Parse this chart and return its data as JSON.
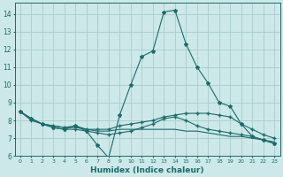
{
  "title": "",
  "xlabel": "Humidex (Indice chaleur)",
  "ylabel": "",
  "background_color": "#cce8e8",
  "grid_color": "#aacccc",
  "line_color": "#1a6b6b",
  "xlim": [
    -0.5,
    23.5
  ],
  "ylim": [
    6.0,
    14.6
  ],
  "yticks": [
    6,
    7,
    8,
    9,
    10,
    11,
    12,
    13,
    14
  ],
  "xticks": [
    0,
    1,
    2,
    3,
    4,
    5,
    6,
    7,
    8,
    9,
    10,
    11,
    12,
    13,
    14,
    15,
    16,
    17,
    18,
    19,
    20,
    21,
    22,
    23
  ],
  "series": [
    [
      8.5,
      8.1,
      7.8,
      7.6,
      7.5,
      7.7,
      7.4,
      6.6,
      5.9,
      8.3,
      10.0,
      11.6,
      11.9,
      14.1,
      14.2,
      12.3,
      11.0,
      10.1,
      9.0,
      8.8,
      7.8,
      7.1,
      6.9,
      6.7
    ],
    [
      8.5,
      8.1,
      7.8,
      7.7,
      7.6,
      7.7,
      7.5,
      7.5,
      7.5,
      7.7,
      7.8,
      7.9,
      8.0,
      8.2,
      8.3,
      8.4,
      8.4,
      8.4,
      8.3,
      8.2,
      7.8,
      7.5,
      7.2,
      7.0
    ],
    [
      8.5,
      8.1,
      7.8,
      7.7,
      7.6,
      7.6,
      7.5,
      7.4,
      7.4,
      7.5,
      7.5,
      7.5,
      7.5,
      7.5,
      7.5,
      7.4,
      7.4,
      7.3,
      7.2,
      7.1,
      7.1,
      7.0,
      6.9,
      6.8
    ],
    [
      8.5,
      8.0,
      7.8,
      7.6,
      7.5,
      7.5,
      7.4,
      7.3,
      7.2,
      7.3,
      7.4,
      7.6,
      7.8,
      8.1,
      8.2,
      8.0,
      7.7,
      7.5,
      7.4,
      7.3,
      7.2,
      7.1,
      6.9,
      6.7
    ]
  ],
  "marker_series": 0,
  "marker": "*",
  "marker_size": 3.0,
  "linewidth": 0.8
}
